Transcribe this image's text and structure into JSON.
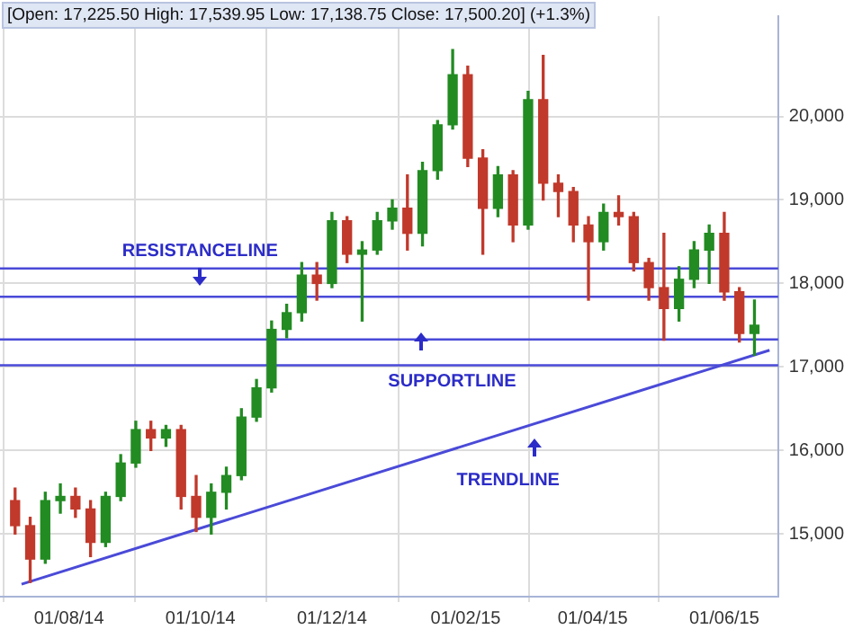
{
  "chart_data": {
    "type": "candlestick",
    "title": "[Open: 17,225.50  High: 17,539.95  Low: 17,138.75  Close: 17,500.20] (+1.3%)",
    "x": [
      "2014-07-07",
      "2014-07-14",
      "2014-07-21",
      "2014-07-28",
      "2014-08-04",
      "2014-08-11",
      "2014-08-18",
      "2014-08-25",
      "2014-09-01",
      "2014-09-08",
      "2014-09-15",
      "2014-09-22",
      "2014-09-29",
      "2014-10-06",
      "2014-10-13",
      "2014-10-20",
      "2014-10-27",
      "2014-11-03",
      "2014-11-10",
      "2014-11-17",
      "2014-11-24",
      "2014-12-01",
      "2014-12-08",
      "2014-12-15",
      "2014-12-22",
      "2014-12-29",
      "2015-01-05",
      "2015-01-12",
      "2015-01-19",
      "2015-01-26",
      "2015-02-02",
      "2015-02-09",
      "2015-02-16",
      "2015-02-23",
      "2015-03-02",
      "2015-03-09",
      "2015-03-16",
      "2015-03-23",
      "2015-03-30",
      "2015-04-06",
      "2015-04-13",
      "2015-04-20",
      "2015-04-27",
      "2015-05-04",
      "2015-05-11",
      "2015-05-18",
      "2015-05-25",
      "2015-06-01",
      "2015-06-08",
      "2015-06-15"
    ],
    "ohlc": [
      [
        15400,
        15550,
        15000,
        15100
      ],
      [
        15100,
        15200,
        14420,
        14700
      ],
      [
        14700,
        15500,
        14650,
        15400
      ],
      [
        15400,
        15600,
        15250,
        15450
      ],
      [
        15450,
        15550,
        15200,
        15300
      ],
      [
        15300,
        15400,
        14730,
        14900
      ],
      [
        14900,
        15500,
        14850,
        15450
      ],
      [
        15450,
        15950,
        15400,
        15850
      ],
      [
        15850,
        16350,
        15800,
        16250
      ],
      [
        16250,
        16350,
        16000,
        16150
      ],
      [
        16150,
        16300,
        16050,
        16250
      ],
      [
        16250,
        16300,
        15300,
        15450
      ],
      [
        15450,
        15700,
        15030,
        15200
      ],
      [
        15200,
        15600,
        15000,
        15500
      ],
      [
        15500,
        15800,
        15300,
        15700
      ],
      [
        15700,
        16500,
        15650,
        16400
      ],
      [
        16400,
        16850,
        16350,
        16750
      ],
      [
        16750,
        17550,
        16700,
        17450
      ],
      [
        17450,
        17750,
        17350,
        17650
      ],
      [
        17650,
        18250,
        17550,
        18100
      ],
      [
        18100,
        18250,
        17800,
        18000
      ],
      [
        18000,
        18850,
        17950,
        18750
      ],
      [
        18750,
        18800,
        18250,
        18350
      ],
      [
        18350,
        18500,
        17550,
        18400
      ],
      [
        18400,
        18850,
        18350,
        18750
      ],
      [
        18750,
        19000,
        18650,
        18900
      ],
      [
        18900,
        19300,
        18400,
        18600
      ],
      [
        18600,
        19450,
        18450,
        19350
      ],
      [
        19350,
        19950,
        19250,
        19900
      ],
      [
        19900,
        20800,
        19850,
        20500
      ],
      [
        20500,
        20600,
        19400,
        19500
      ],
      [
        19500,
        19600,
        18350,
        18900
      ],
      [
        18900,
        19400,
        18800,
        19300
      ],
      [
        19300,
        19350,
        18500,
        18700
      ],
      [
        18700,
        20300,
        18650,
        20200
      ],
      [
        20200,
        20730,
        19000,
        19200
      ],
      [
        19200,
        19300,
        18800,
        19100
      ],
      [
        19100,
        19150,
        18500,
        18700
      ],
      [
        18700,
        18800,
        17800,
        18500
      ],
      [
        18500,
        18950,
        18400,
        18850
      ],
      [
        18850,
        19050,
        18700,
        18800
      ],
      [
        18800,
        18850,
        18150,
        18250
      ],
      [
        18250,
        18300,
        17800,
        17950
      ],
      [
        17950,
        18600,
        17320,
        17700
      ],
      [
        17700,
        18200,
        17550,
        18050
      ],
      [
        18050,
        18500,
        17950,
        18400
      ],
      [
        18400,
        18700,
        18000,
        18600
      ],
      [
        18600,
        18850,
        17800,
        17900
      ],
      [
        17900,
        17950,
        17300,
        17400
      ],
      [
        17400,
        17800,
        17140,
        17500
      ]
    ],
    "colors": [
      "#c0392b",
      "#c0392b",
      "#228b22",
      "#228b22",
      "#c0392b",
      "#c0392b",
      "#228b22",
      "#228b22",
      "#228b22",
      "#c0392b",
      "#228b22",
      "#c0392b",
      "#c0392b",
      "#228b22",
      "#228b22",
      "#228b22",
      "#228b22",
      "#228b22",
      "#228b22",
      "#228b22",
      "#c0392b",
      "#228b22",
      "#c0392b",
      "#228b22",
      "#228b22",
      "#228b22",
      "#c0392b",
      "#228b22",
      "#228b22",
      "#228b22",
      "#c0392b",
      "#c0392b",
      "#228b22",
      "#c0392b",
      "#228b22",
      "#c0392b",
      "#c0392b",
      "#c0392b",
      "#c0392b",
      "#228b22",
      "#c0392b",
      "#c0392b",
      "#c0392b",
      "#c0392b",
      "#228b22",
      "#228b22",
      "#228b22",
      "#c0392b",
      "#c0392b",
      "#228b22"
    ],
    "series": [
      {
        "type": "line",
        "color": "#4a4ad8",
        "x": [
          "2014-07-10",
          "2015-06-22"
        ],
        "values": [
          14400,
          17200
        ]
      }
    ],
    "ref_lines": [
      {
        "axis": "y",
        "value": 18180,
        "color": "#4a4ad8"
      },
      {
        "axis": "y",
        "value": 17840,
        "color": "#4a4ad8"
      },
      {
        "axis": "y",
        "value": 17330,
        "color": "#4a4ad8"
      },
      {
        "axis": "y",
        "value": 17020,
        "color": "#4a4ad8"
      }
    ],
    "annotations": [
      "RESISTANCELINE",
      "SUPPORTLINE",
      "TRENDLINE"
    ],
    "xlim": [
      "2014-06-30",
      "2015-06-26"
    ],
    "xticks": [
      {
        "value": "2014-08-01",
        "label": "01/08/14"
      },
      {
        "value": "2014-10-01",
        "label": "01/10/14"
      },
      {
        "value": "2014-12-01",
        "label": "01/12/14"
      },
      {
        "value": "2015-02-01",
        "label": "01/02/15"
      },
      {
        "value": "2015-04-01",
        "label": "01/04/15"
      },
      {
        "value": "2015-06-01",
        "label": "01/06/15"
      }
    ],
    "ylim": [
      14250,
      21200
    ],
    "yticks": [
      {
        "value": 15000,
        "label": "15,000"
      },
      {
        "value": 16000,
        "label": "16,000"
      },
      {
        "value": 17000,
        "label": "17,000"
      },
      {
        "value": 18000,
        "label": "18,000"
      },
      {
        "value": 19000,
        "label": "19,000"
      },
      {
        "value": 20000,
        "label": "20,000"
      }
    ],
    "grid": true,
    "legend": false
  }
}
